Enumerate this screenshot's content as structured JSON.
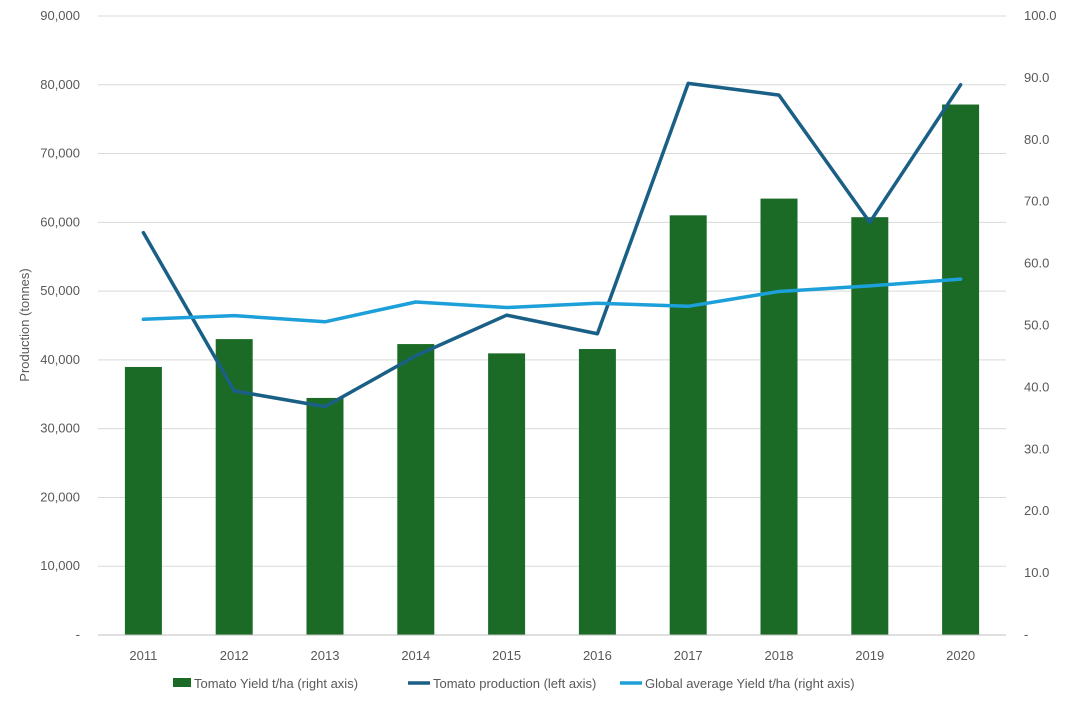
{
  "chart_data": {
    "type": "bar",
    "categories": [
      "2011",
      "2012",
      "2013",
      "2014",
      "2015",
      "2016",
      "2017",
      "2018",
      "2019",
      "2020"
    ],
    "series": [
      {
        "name": "Tomato Yield t/ha (right axis)",
        "type": "bar",
        "axis": "right",
        "values": [
          43.3,
          47.8,
          38.3,
          47.0,
          45.5,
          46.2,
          67.8,
          70.5,
          67.5,
          85.7
        ]
      },
      {
        "name": "Tomato production (left axis)",
        "type": "line",
        "axis": "left",
        "values": [
          58500,
          35500,
          33200,
          40600,
          46500,
          43800,
          80200,
          78500,
          60000,
          80000
        ]
      },
      {
        "name": "Global average Yield t/ha (right axis)",
        "type": "line",
        "axis": "right",
        "values": [
          51.0,
          51.6,
          50.6,
          53.8,
          52.9,
          53.6,
          53.1,
          55.5,
          56.4,
          57.5
        ]
      }
    ],
    "ylabel": "Production (tonnes)",
    "ylim": [
      0,
      90000
    ],
    "y2lim": [
      0,
      100
    ],
    "yticks": [
      "-",
      "10,000",
      "20,000",
      "30,000",
      "40,000",
      "50,000",
      "60,000",
      "70,000",
      "80,000",
      "90,000"
    ],
    "y2ticks": [
      "-",
      "10.0",
      "20.0",
      "30.0",
      "40.0",
      "50.0",
      "60.0",
      "70.0",
      "80.0",
      "90.0",
      "100.0"
    ],
    "grid": true,
    "legend_position": "bottom",
    "colors": {
      "bar": "#1b6b26",
      "production_line": "#1a5f85",
      "global_line": "#1d9fd9",
      "grid": "#d9d9d9",
      "axis": "#bfbfbf",
      "text": "#595959"
    }
  }
}
